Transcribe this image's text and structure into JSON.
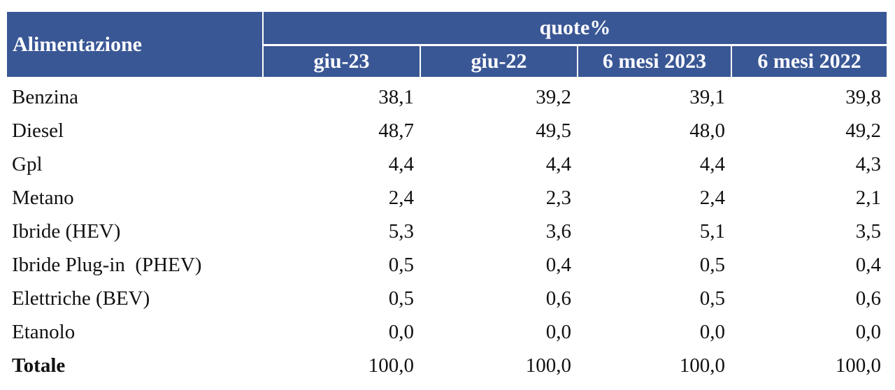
{
  "header": {
    "row_label": "Alimentazione",
    "group": "quote%",
    "columns": [
      "giu-23",
      "giu-22",
      "6 mesi 2023",
      "6 mesi 2022"
    ]
  },
  "rows": [
    {
      "label": "Benzina",
      "values": [
        "38,1",
        "39,2",
        "39,1",
        "39,8"
      ]
    },
    {
      "label": "Diesel",
      "values": [
        "48,7",
        "49,5",
        "48,0",
        "49,2"
      ]
    },
    {
      "label": "Gpl",
      "values": [
        "4,4",
        "4,4",
        "4,4",
        "4,3"
      ]
    },
    {
      "label": "Metano",
      "values": [
        "2,4",
        "2,3",
        "2,4",
        "2,1"
      ]
    },
    {
      "label": "Ibride (HEV)",
      "values": [
        "5,3",
        "3,6",
        "5,1",
        "3,5"
      ]
    },
    {
      "label": "Ibride Plug-in  (PHEV)",
      "values": [
        "0,5",
        "0,4",
        "0,5",
        "0,4"
      ]
    },
    {
      "label": "Elettriche (BEV)",
      "values": [
        "0,5",
        "0,6",
        "0,5",
        "0,6"
      ]
    },
    {
      "label": "Etanolo",
      "values": [
        "0,0",
        "0,0",
        "0,0",
        "0,0"
      ]
    },
    {
      "label": "Totale",
      "values": [
        "100,0",
        "100,0",
        "100,0",
        "100,0"
      ],
      "bold": true
    }
  ]
}
